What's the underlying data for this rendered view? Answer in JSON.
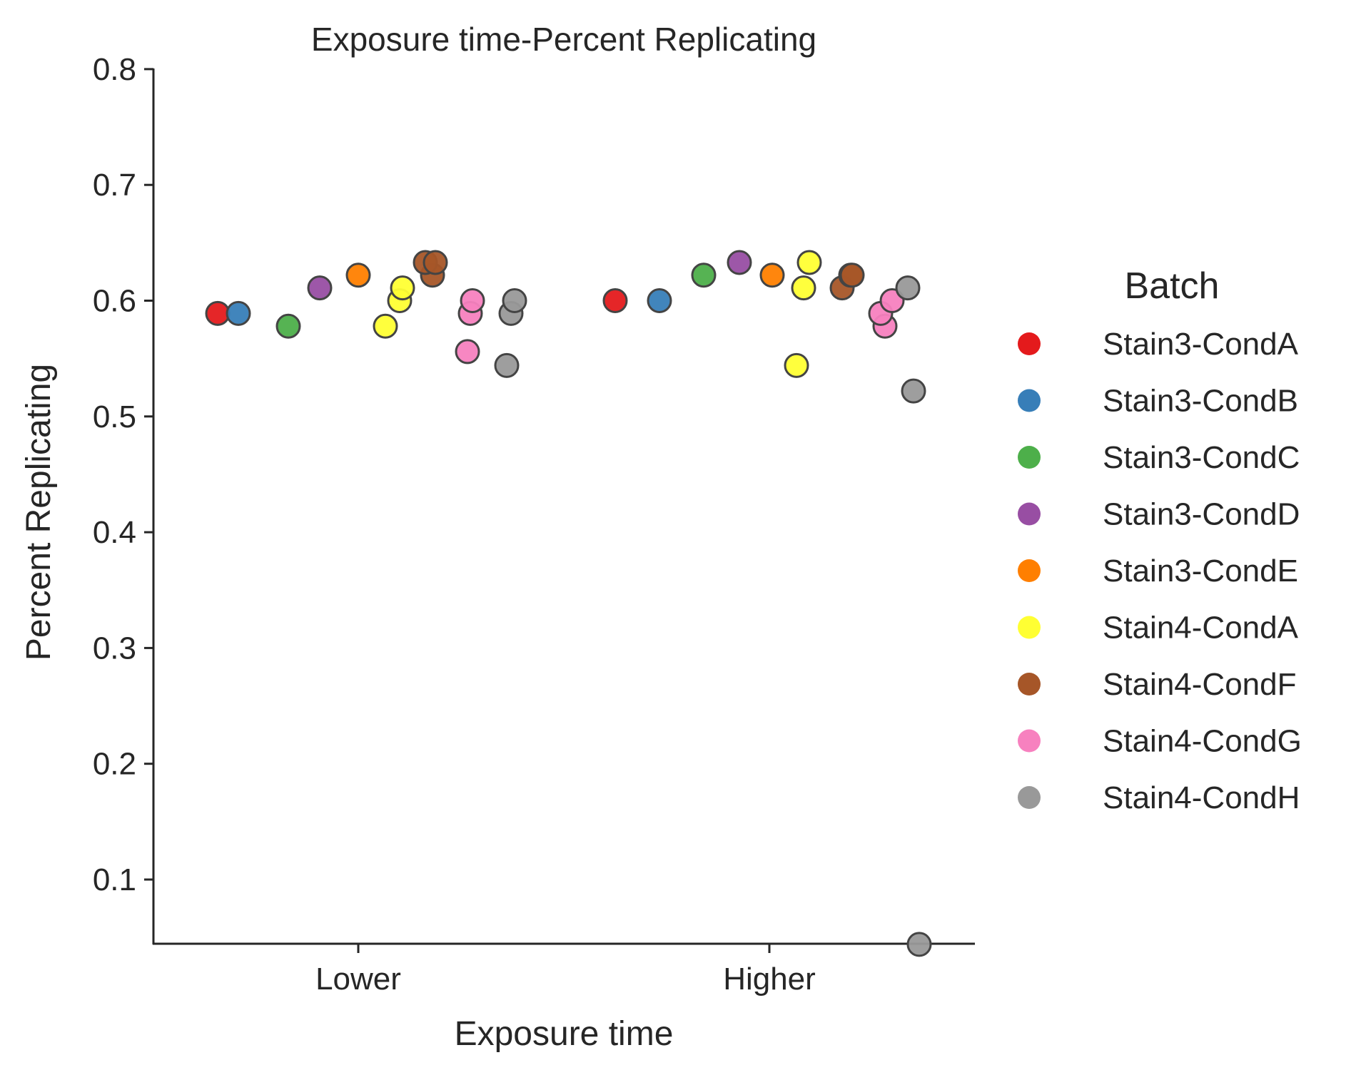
{
  "chart_data": {
    "type": "scatter",
    "title": "Exposure time-Percent Replicating",
    "xlabel": "Exposure time",
    "ylabel": "Percent Replicating",
    "categories": [
      "Lower",
      "Higher"
    ],
    "ylim": [
      0.045,
      0.8
    ],
    "yticks": [
      "0.1",
      "0.2",
      "0.3",
      "0.4",
      "0.5",
      "0.6",
      "0.7",
      "0.8"
    ],
    "grid": false,
    "legend": {
      "title": "Batch",
      "placement": "right",
      "entries": [
        "Stain3-CondA",
        "Stain3-CondB",
        "Stain3-CondC",
        "Stain3-CondD",
        "Stain3-CondE",
        "Stain4-CondA",
        "Stain4-CondF",
        "Stain4-CondG",
        "Stain4-CondH"
      ]
    },
    "series": [
      {
        "name": "Stain3-CondA",
        "color": "#e41a1c",
        "points": [
          {
            "x": "Lower",
            "y": 0.589
          },
          {
            "x": "Higher",
            "y": 0.6
          }
        ]
      },
      {
        "name": "Stain3-CondB",
        "color": "#377eb8",
        "points": [
          {
            "x": "Lower",
            "y": 0.589
          },
          {
            "x": "Higher",
            "y": 0.6
          }
        ]
      },
      {
        "name": "Stain3-CondC",
        "color": "#4daf4a",
        "points": [
          {
            "x": "Lower",
            "y": 0.578
          },
          {
            "x": "Higher",
            "y": 0.622
          }
        ]
      },
      {
        "name": "Stain3-CondD",
        "color": "#984ea3",
        "points": [
          {
            "x": "Lower",
            "y": 0.611
          },
          {
            "x": "Higher",
            "y": 0.633
          }
        ]
      },
      {
        "name": "Stain3-CondE",
        "color": "#ff7f00",
        "points": [
          {
            "x": "Lower",
            "y": 0.622
          },
          {
            "x": "Higher",
            "y": 0.622
          }
        ]
      },
      {
        "name": "Stain4-CondA",
        "color": "#ffff33",
        "points": [
          {
            "x": "Lower",
            "y": 0.578
          },
          {
            "x": "Lower",
            "y": 0.6
          },
          {
            "x": "Lower",
            "y": 0.611
          },
          {
            "x": "Higher",
            "y": 0.544
          },
          {
            "x": "Higher",
            "y": 0.611
          },
          {
            "x": "Higher",
            "y": 0.633
          }
        ]
      },
      {
        "name": "Stain4-CondF",
        "color": "#a65628",
        "points": [
          {
            "x": "Lower",
            "y": 0.622
          },
          {
            "x": "Lower",
            "y": 0.633
          },
          {
            "x": "Lower",
            "y": 0.633
          },
          {
            "x": "Higher",
            "y": 0.611
          },
          {
            "x": "Higher",
            "y": 0.622
          },
          {
            "x": "Higher",
            "y": 0.622
          }
        ]
      },
      {
        "name": "Stain4-CondG",
        "color": "#f781bf",
        "points": [
          {
            "x": "Lower",
            "y": 0.556
          },
          {
            "x": "Lower",
            "y": 0.589
          },
          {
            "x": "Lower",
            "y": 0.6
          },
          {
            "x": "Higher",
            "y": 0.578
          },
          {
            "x": "Higher",
            "y": 0.589
          },
          {
            "x": "Higher",
            "y": 0.6
          }
        ]
      },
      {
        "name": "Stain4-CondH",
        "color": "#999999",
        "points": [
          {
            "x": "Lower",
            "y": 0.544
          },
          {
            "x": "Lower",
            "y": 0.589
          },
          {
            "x": "Lower",
            "y": 0.6
          },
          {
            "x": "Higher",
            "y": 0.044
          },
          {
            "x": "Higher",
            "y": 0.522
          },
          {
            "x": "Higher",
            "y": 0.611
          }
        ]
      }
    ]
  }
}
